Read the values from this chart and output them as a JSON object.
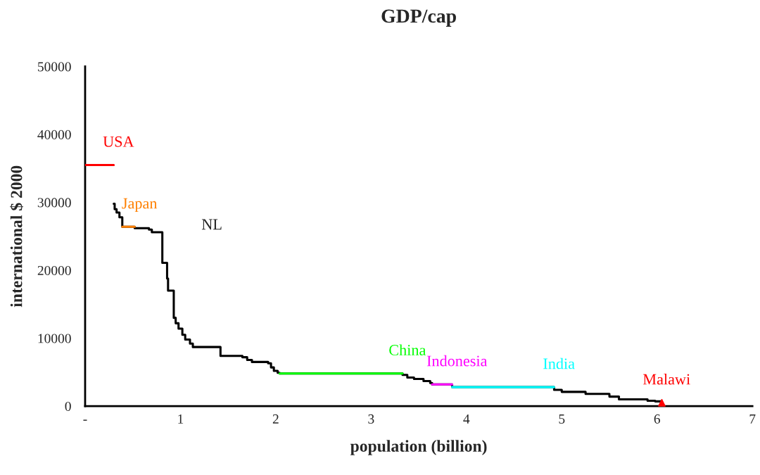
{
  "chart_data": {
    "type": "step",
    "title": "GDP/cap",
    "xlabel": "population (billion)",
    "ylabel": "international $ 2000",
    "xlim": [
      0,
      7
    ],
    "xticks": [
      {
        "value": 0,
        "label": "-"
      },
      1,
      2,
      3,
      4,
      5,
      6,
      7
    ],
    "ylim": [
      0,
      50000
    ],
    "yticks": [
      0,
      10000,
      20000,
      30000,
      40000,
      50000
    ],
    "grid": false,
    "legend": false,
    "annotations": [
      "NL"
    ],
    "series": [
      {
        "color": "#000000",
        "x": [
          0.3,
          0.31,
          0.33,
          0.36,
          0.39,
          0.52,
          0.67,
          0.7,
          0.81,
          0.86,
          0.87,
          0.93,
          0.95,
          0.98,
          1.02,
          1.05,
          1.1,
          1.13,
          1.42,
          1.65,
          1.7,
          1.75,
          1.92,
          1.95,
          1.98,
          2.02,
          2.04,
          3.33,
          3.38,
          3.45,
          3.55,
          3.62,
          3.64,
          3.85,
          4.92,
          5.0,
          5.25,
          5.5,
          5.6,
          5.9,
          5.98,
          6.05
        ],
        "values": [
          29800,
          29000,
          28500,
          27800,
          26400,
          26200,
          26000,
          25600,
          21100,
          18800,
          17000,
          13000,
          12200,
          11400,
          10500,
          9800,
          9200,
          8700,
          7400,
          7200,
          6800,
          6500,
          6300,
          5700,
          5200,
          4900,
          4800,
          4600,
          4200,
          4000,
          3700,
          3400,
          3200,
          2800,
          2400,
          2100,
          1800,
          1400,
          1000,
          800,
          700,
          700
        ]
      },
      {
        "name": "USA",
        "color": "#ff0000",
        "x": [
          0,
          0.3
        ],
        "values": [
          35500,
          35500
        ]
      },
      {
        "name": "Japan",
        "color": "#ff8000",
        "x": [
          0.39,
          0.52
        ],
        "values": [
          26400,
          26400
        ]
      },
      {
        "name": "China",
        "color": "#00ff00",
        "x": [
          2.04,
          3.33
        ],
        "values": [
          4800,
          4800
        ]
      },
      {
        "name": "Indonesia",
        "color": "#ff00ff",
        "x": [
          3.64,
          3.85
        ],
        "values": [
          3200,
          3200
        ]
      },
      {
        "name": "India",
        "color": "#00ffff",
        "x": [
          3.85,
          4.92
        ],
        "values": [
          2800,
          2800
        ]
      },
      {
        "name": "Malawi",
        "type": "scatter",
        "marker": "triangle",
        "color": "#ff0000",
        "x": [
          6.05
        ],
        "values": [
          500
        ]
      }
    ]
  }
}
